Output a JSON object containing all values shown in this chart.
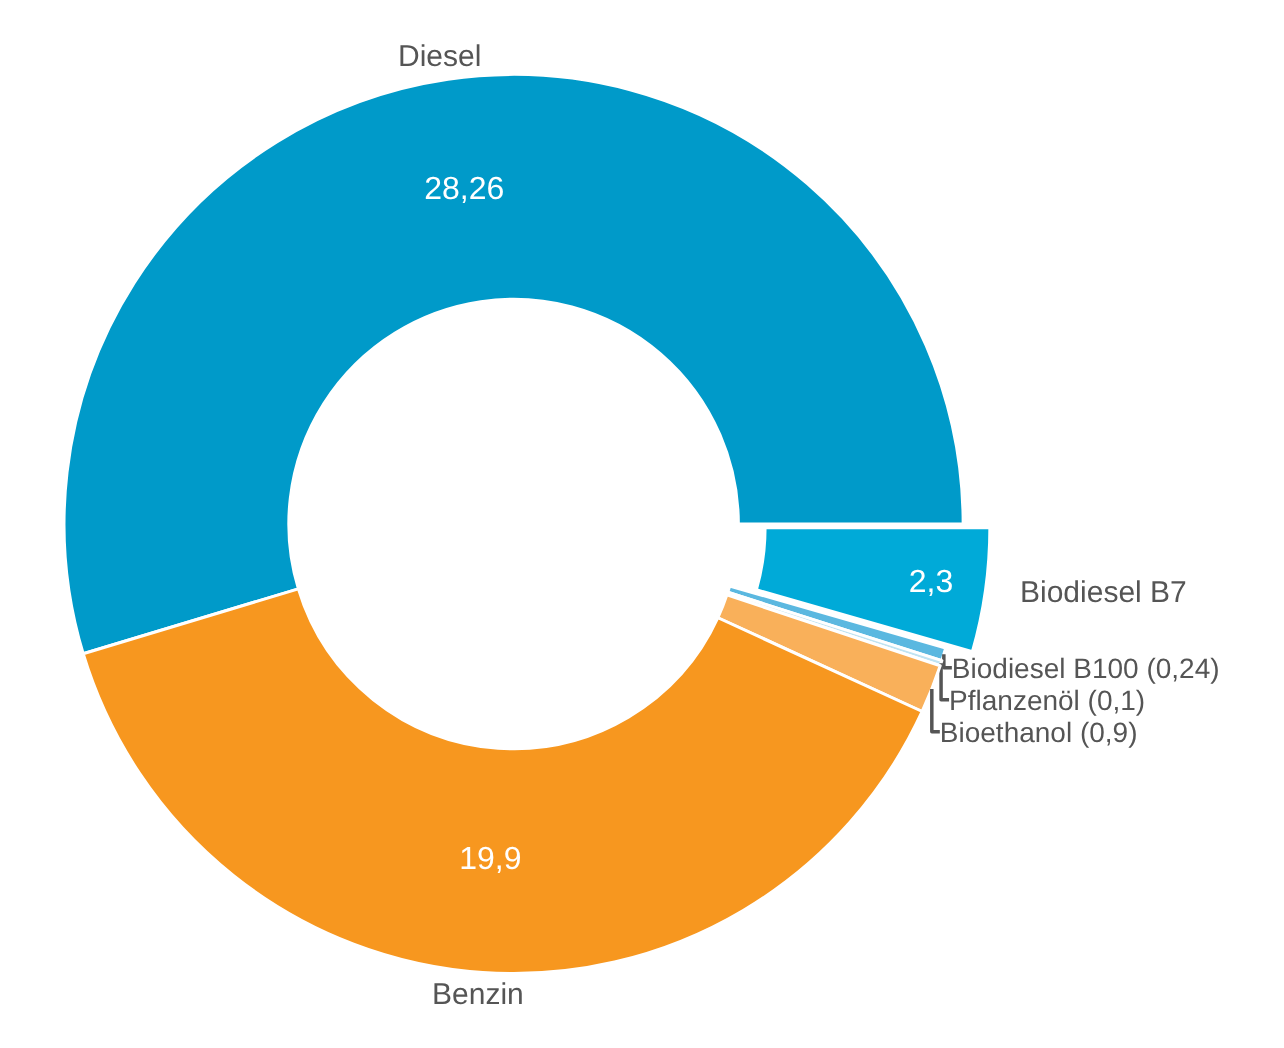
{
  "chart_data": {
    "type": "donut",
    "categories": [
      "Diesel",
      "Biodiesel B7",
      "Biodiesel B100",
      "Pflanzenöl",
      "Bioethanol",
      "Benzin"
    ],
    "values": [
      28.26,
      2.3,
      0.24,
      0.1,
      0.9,
      19.9
    ],
    "value_labels": [
      "28,26",
      "2,3",
      "(0,24)",
      "(0,1)",
      "(0,9)",
      "19,9"
    ],
    "colors": [
      "#009ac9",
      "#00aad8",
      "#5bb8e0",
      "#bfe3f2",
      "#f9b05a",
      "#f7971f"
    ],
    "legend": false
  }
}
